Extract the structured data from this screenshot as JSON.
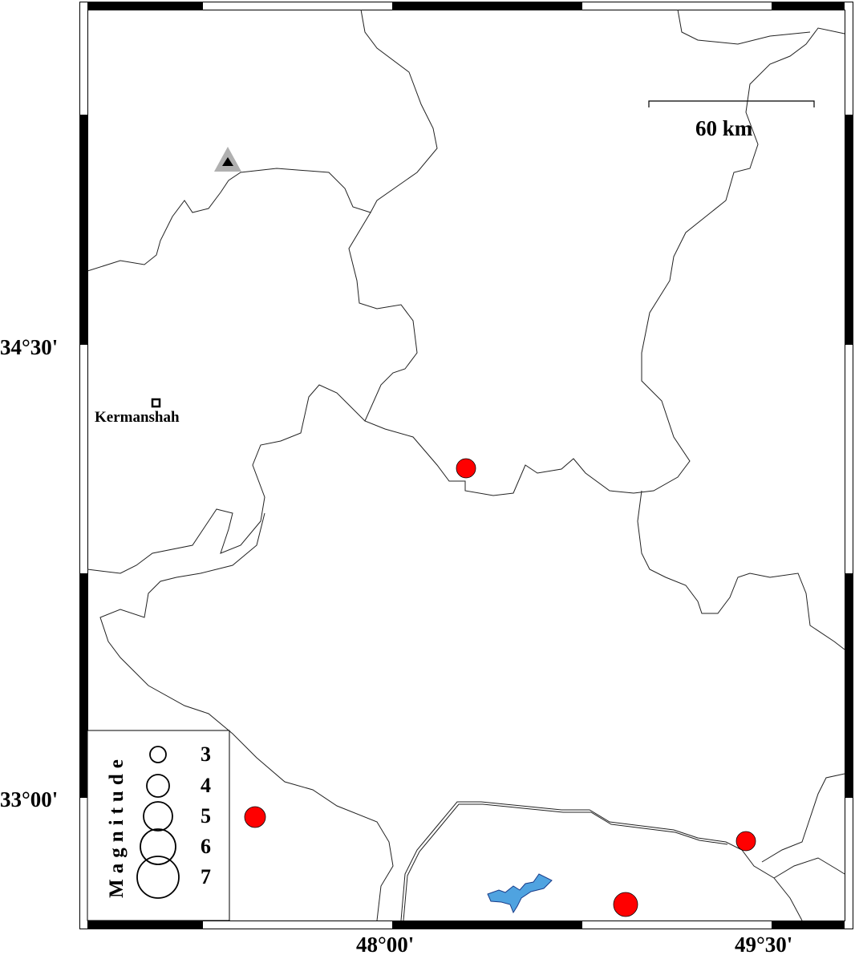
{
  "map": {
    "axes": {
      "y_labels": [
        "34°30'",
        "33°00'"
      ],
      "x_labels": [
        "48°00'",
        "49°30'"
      ]
    },
    "scale_bar": {
      "label": "60 km"
    },
    "city": {
      "name": "Kermanshah",
      "icon": "square-marker-icon"
    },
    "station": {
      "icon": "triangle-station-icon"
    },
    "legend": {
      "title": "Magnitude",
      "entries": [
        "3",
        "4",
        "5",
        "6",
        "7"
      ]
    },
    "colors": {
      "event": "#ff0000",
      "lake": "#4fa3e0",
      "station_outer": "#b0b0b0",
      "station_inner": "#000000",
      "border": "#000000"
    }
  }
}
